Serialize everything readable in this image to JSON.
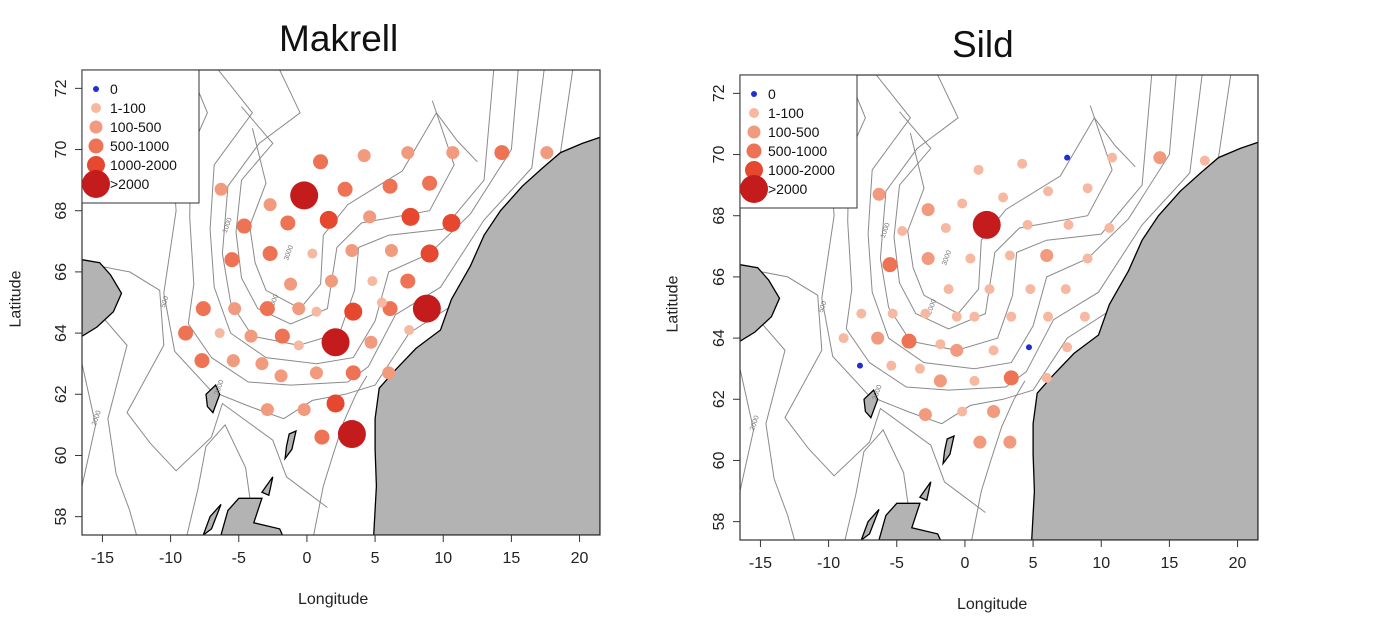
{
  "chart_data": [
    {
      "type": "scatter",
      "title": "Makrell",
      "xlabel": "Longitude",
      "ylabel": "Latitude",
      "xlim": [
        -16.5,
        21.5
      ],
      "ylim": [
        57.4,
        72.6
      ],
      "xticks": [
        "-15",
        "-10",
        "-5",
        "0",
        "5",
        "10",
        "15",
        "20"
      ],
      "yticks": [
        "58",
        "60",
        "62",
        "64",
        "66",
        "68",
        "70",
        "72"
      ],
      "legend": {
        "placement": "top-left",
        "entries": [
          "0",
          "1-100",
          "100-500",
          "500-1000",
          "1000-2000",
          ">2000"
        ]
      },
      "contour_labels": [
        "500",
        "1000",
        "2000",
        "3000",
        "2000",
        "2000"
      ],
      "points": [
        {
          "lon": 1.0,
          "lat": 69.6,
          "c": 3
        },
        {
          "lon": 4.2,
          "lat": 69.8,
          "c": 2
        },
        {
          "lon": 7.4,
          "lat": 69.9,
          "c": 2
        },
        {
          "lon": 10.7,
          "lat": 69.9,
          "c": 2
        },
        {
          "lon": 14.3,
          "lat": 69.9,
          "c": 3
        },
        {
          "lon": 17.6,
          "lat": 69.9,
          "c": 2
        },
        {
          "lon": -6.3,
          "lat": 68.7,
          "c": 2
        },
        {
          "lon": -2.7,
          "lat": 68.2,
          "c": 2
        },
        {
          "lon": -0.2,
          "lat": 68.5,
          "c": 5
        },
        {
          "lon": 2.8,
          "lat": 68.7,
          "c": 3
        },
        {
          "lon": 6.1,
          "lat": 68.8,
          "c": 3
        },
        {
          "lon": 9.0,
          "lat": 68.9,
          "c": 3
        },
        {
          "lon": -4.6,
          "lat": 67.5,
          "c": 3
        },
        {
          "lon": -1.4,
          "lat": 67.6,
          "c": 3
        },
        {
          "lon": 1.6,
          "lat": 67.7,
          "c": 4
        },
        {
          "lon": 4.6,
          "lat": 67.8,
          "c": 2
        },
        {
          "lon": 7.6,
          "lat": 67.8,
          "c": 4
        },
        {
          "lon": 10.6,
          "lat": 67.6,
          "c": 4
        },
        {
          "lon": -5.5,
          "lat": 66.4,
          "c": 3
        },
        {
          "lon": -2.7,
          "lat": 66.6,
          "c": 3
        },
        {
          "lon": 0.4,
          "lat": 66.6,
          "c": 1
        },
        {
          "lon": 3.3,
          "lat": 66.7,
          "c": 2
        },
        {
          "lon": 6.2,
          "lat": 66.7,
          "c": 2
        },
        {
          "lon": 9.0,
          "lat": 66.6,
          "c": 4
        },
        {
          "lon": -1.2,
          "lat": 65.6,
          "c": 2
        },
        {
          "lon": 1.8,
          "lat": 65.7,
          "c": 2
        },
        {
          "lon": 4.8,
          "lat": 65.7,
          "c": 1
        },
        {
          "lon": 7.4,
          "lat": 65.7,
          "c": 3
        },
        {
          "lon": -7.6,
          "lat": 64.8,
          "c": 3
        },
        {
          "lon": -5.3,
          "lat": 64.8,
          "c": 2
        },
        {
          "lon": -2.9,
          "lat": 64.8,
          "c": 3
        },
        {
          "lon": -0.6,
          "lat": 64.8,
          "c": 2
        },
        {
          "lon": 0.7,
          "lat": 64.7,
          "c": 1
        },
        {
          "lon": 3.4,
          "lat": 64.7,
          "c": 4
        },
        {
          "lon": 6.1,
          "lat": 64.8,
          "c": 3
        },
        {
          "lon": 8.8,
          "lat": 64.8,
          "c": 5
        },
        {
          "lon": -8.9,
          "lat": 64.0,
          "c": 3
        },
        {
          "lon": -6.4,
          "lat": 64.0,
          "c": 1
        },
        {
          "lon": -4.1,
          "lat": 63.9,
          "c": 2
        },
        {
          "lon": -1.8,
          "lat": 63.9,
          "c": 3
        },
        {
          "lon": -0.6,
          "lat": 63.6,
          "c": 1
        },
        {
          "lon": 2.1,
          "lat": 63.7,
          "c": 5
        },
        {
          "lon": 4.7,
          "lat": 63.7,
          "c": 2
        },
        {
          "lon": -7.7,
          "lat": 63.1,
          "c": 3
        },
        {
          "lon": -5.4,
          "lat": 63.1,
          "c": 2
        },
        {
          "lon": -3.3,
          "lat": 63.0,
          "c": 2
        },
        {
          "lon": -1.9,
          "lat": 62.6,
          "c": 2
        },
        {
          "lon": 0.7,
          "lat": 62.7,
          "c": 2
        },
        {
          "lon": 3.4,
          "lat": 62.7,
          "c": 3
        },
        {
          "lon": 6.0,
          "lat": 62.7,
          "c": 2
        },
        {
          "lon": -2.9,
          "lat": 61.5,
          "c": 2
        },
        {
          "lon": -0.2,
          "lat": 61.5,
          "c": 2
        },
        {
          "lon": 2.1,
          "lat": 61.7,
          "c": 4
        },
        {
          "lon": 1.1,
          "lat": 60.6,
          "c": 3
        },
        {
          "lon": 3.3,
          "lat": 60.7,
          "c": 5
        },
        {
          "lon": 7.5,
          "lat": 64.1,
          "c": 1
        },
        {
          "lon": 5.5,
          "lat": 65.0,
          "c": 1
        }
      ]
    },
    {
      "type": "scatter",
      "title": "Sild",
      "xlabel": "Longitude",
      "ylabel": "Latitude",
      "xlim": [
        -16.5,
        21.5
      ],
      "ylim": [
        57.4,
        72.6
      ],
      "xticks": [
        "-15",
        "-10",
        "-5",
        "0",
        "5",
        "10",
        "15",
        "20"
      ],
      "yticks": [
        "58",
        "60",
        "62",
        "64",
        "66",
        "68",
        "70",
        "72"
      ],
      "legend": {
        "placement": "top-left",
        "entries": [
          "0",
          "1-100",
          "100-500",
          "500-1000",
          "1000-2000",
          ">2000"
        ]
      },
      "contour_labels": [
        "500",
        "1000",
        "2000",
        "3000",
        "2000",
        "2000"
      ],
      "points": [
        {
          "lon": 1.0,
          "lat": 69.5,
          "c": 1
        },
        {
          "lon": 4.2,
          "lat": 69.7,
          "c": 1
        },
        {
          "lon": 7.5,
          "lat": 69.9,
          "c": 0
        },
        {
          "lon": 10.8,
          "lat": 69.9,
          "c": 1
        },
        {
          "lon": 14.3,
          "lat": 69.9,
          "c": 2
        },
        {
          "lon": 17.6,
          "lat": 69.8,
          "c": 1
        },
        {
          "lon": -6.3,
          "lat": 68.7,
          "c": 2
        },
        {
          "lon": -2.7,
          "lat": 68.2,
          "c": 2
        },
        {
          "lon": -0.2,
          "lat": 68.4,
          "c": 1
        },
        {
          "lon": 2.8,
          "lat": 68.6,
          "c": 1
        },
        {
          "lon": 6.1,
          "lat": 68.8,
          "c": 1
        },
        {
          "lon": 9.0,
          "lat": 68.9,
          "c": 1
        },
        {
          "lon": -4.6,
          "lat": 67.5,
          "c": 1
        },
        {
          "lon": -1.4,
          "lat": 67.6,
          "c": 1
        },
        {
          "lon": 1.6,
          "lat": 67.7,
          "c": 5
        },
        {
          "lon": 4.6,
          "lat": 67.7,
          "c": 1
        },
        {
          "lon": 7.6,
          "lat": 67.7,
          "c": 1
        },
        {
          "lon": 10.6,
          "lat": 67.6,
          "c": 1
        },
        {
          "lon": -5.5,
          "lat": 66.4,
          "c": 3
        },
        {
          "lon": -2.7,
          "lat": 66.6,
          "c": 2
        },
        {
          "lon": 0.4,
          "lat": 66.6,
          "c": 1
        },
        {
          "lon": 3.3,
          "lat": 66.7,
          "c": 1
        },
        {
          "lon": 6.0,
          "lat": 66.7,
          "c": 2
        },
        {
          "lon": 9.0,
          "lat": 66.6,
          "c": 1
        },
        {
          "lon": -1.2,
          "lat": 65.6,
          "c": 1
        },
        {
          "lon": 1.8,
          "lat": 65.6,
          "c": 1
        },
        {
          "lon": 4.8,
          "lat": 65.6,
          "c": 1
        },
        {
          "lon": 7.4,
          "lat": 65.6,
          "c": 1
        },
        {
          "lon": -7.6,
          "lat": 64.8,
          "c": 1
        },
        {
          "lon": -5.3,
          "lat": 64.8,
          "c": 1
        },
        {
          "lon": -2.9,
          "lat": 64.8,
          "c": 1
        },
        {
          "lon": -0.6,
          "lat": 64.7,
          "c": 1
        },
        {
          "lon": 0.7,
          "lat": 64.7,
          "c": 1
        },
        {
          "lon": 3.4,
          "lat": 64.7,
          "c": 1
        },
        {
          "lon": 6.1,
          "lat": 64.7,
          "c": 1
        },
        {
          "lon": 8.8,
          "lat": 64.7,
          "c": 1
        },
        {
          "lon": -8.9,
          "lat": 64.0,
          "c": 1
        },
        {
          "lon": -6.4,
          "lat": 64.0,
          "c": 2
        },
        {
          "lon": -4.1,
          "lat": 63.9,
          "c": 3
        },
        {
          "lon": -1.8,
          "lat": 63.8,
          "c": 1
        },
        {
          "lon": -0.6,
          "lat": 63.6,
          "c": 2
        },
        {
          "lon": 2.1,
          "lat": 63.6,
          "c": 1
        },
        {
          "lon": 4.7,
          "lat": 63.7,
          "c": 0
        },
        {
          "lon": -7.7,
          "lat": 63.1,
          "c": 0
        },
        {
          "lon": -5.4,
          "lat": 63.1,
          "c": 1
        },
        {
          "lon": -3.3,
          "lat": 63.0,
          "c": 1
        },
        {
          "lon": -1.8,
          "lat": 62.6,
          "c": 2
        },
        {
          "lon": 0.7,
          "lat": 62.6,
          "c": 1
        },
        {
          "lon": 3.4,
          "lat": 62.7,
          "c": 3
        },
        {
          "lon": 6.0,
          "lat": 62.7,
          "c": 1
        },
        {
          "lon": -2.9,
          "lat": 61.5,
          "c": 2
        },
        {
          "lon": -0.2,
          "lat": 61.6,
          "c": 1
        },
        {
          "lon": 2.1,
          "lat": 61.6,
          "c": 2
        },
        {
          "lon": 1.1,
          "lat": 60.6,
          "c": 2
        },
        {
          "lon": 3.3,
          "lat": 60.6,
          "c": 2
        },
        {
          "lon": 7.5,
          "lat": 63.7,
          "c": 1
        }
      ]
    }
  ],
  "style": {
    "frame": "#333333",
    "land_fill": "#b3b3b3",
    "land_stroke": "#000000",
    "contour": "#8a8a8a",
    "category_colors": [
      "#1f2fd6",
      "#f7b8a1",
      "#f29a7e",
      "#ee7254",
      "#e5472f",
      "#c41c1c"
    ],
    "category_radii": [
      3,
      5,
      6.5,
      7.5,
      9,
      14
    ]
  }
}
